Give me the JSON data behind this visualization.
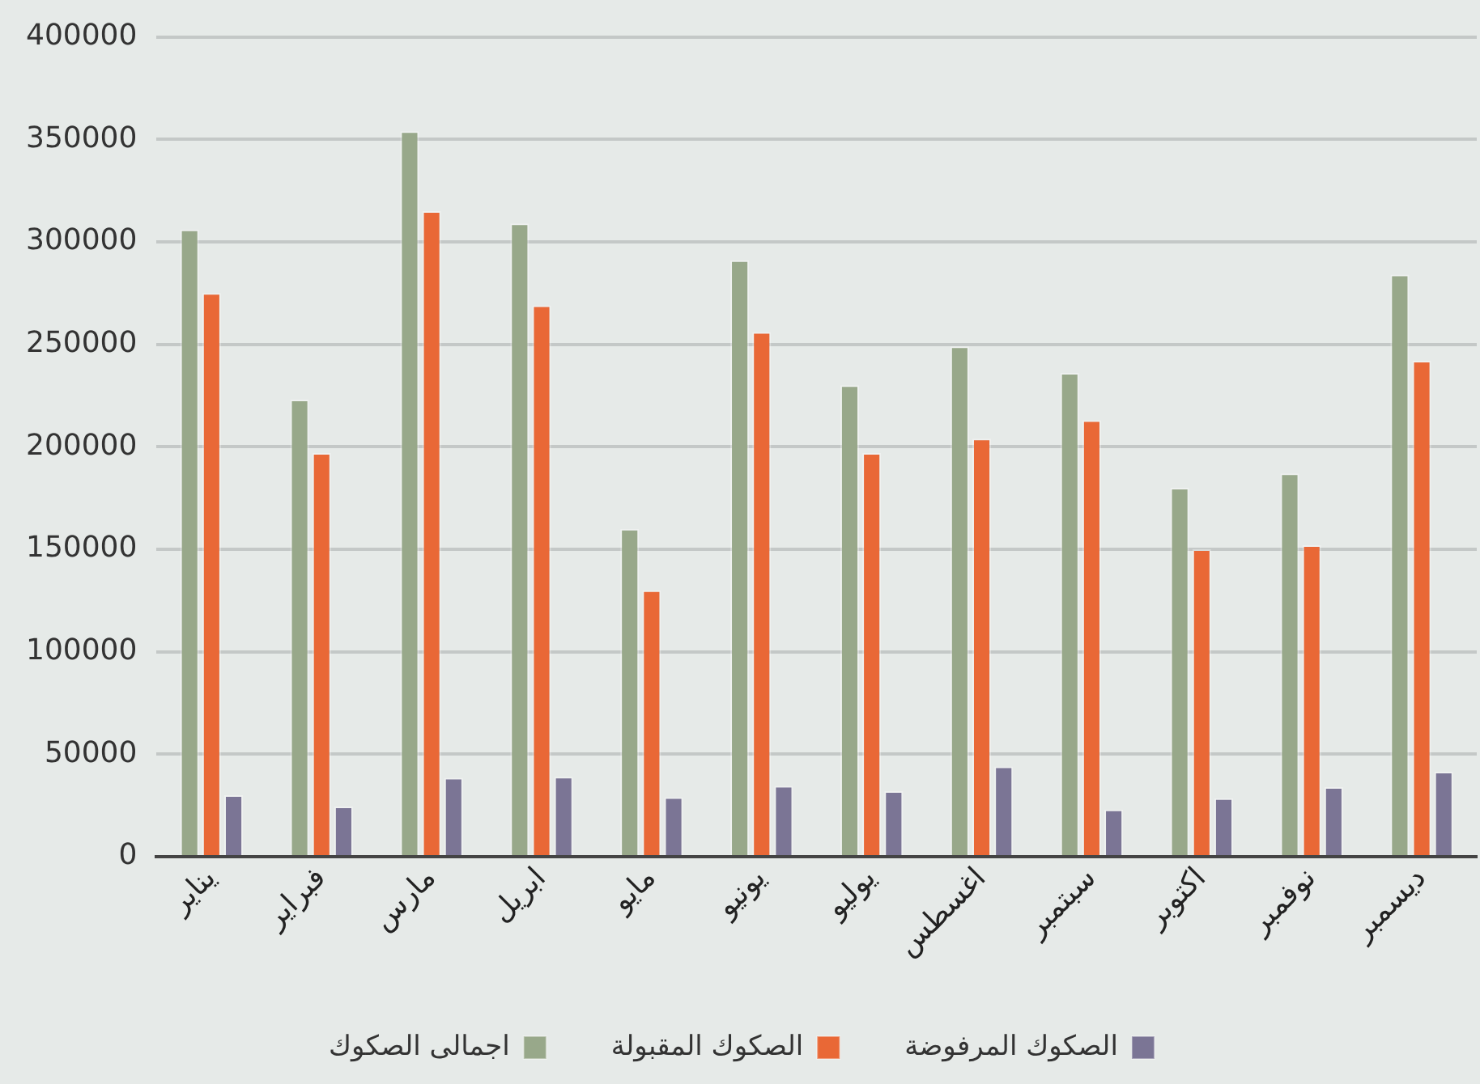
{
  "chart_data": {
    "type": "bar",
    "categories": [
      "يناير",
      "فبراير",
      "مارس",
      "ابريل",
      "مايو",
      "يونيو",
      "يوليو",
      "اغسطس",
      "سبتمبر",
      "اكتوبر",
      "نوفمبر",
      "ديسمبر"
    ],
    "series": [
      {
        "name": "اجمالى الصكوك",
        "color": "#98a88a",
        "values": [
          306000,
          223000,
          354000,
          309000,
          160000,
          291000,
          230000,
          249000,
          236000,
          180000,
          187000,
          284000
        ]
      },
      {
        "name": "الصكوك المقبولة",
        "color": "#e96836",
        "values": [
          275000,
          197000,
          315000,
          269000,
          130000,
          256000,
          197000,
          204000,
          213000,
          150000,
          152000,
          242000
        ]
      },
      {
        "name": "الصكوك المرفوضة",
        "color": "#7b7595",
        "values": [
          30000,
          24500,
          38500,
          39000,
          29000,
          34500,
          32000,
          44000,
          23000,
          28500,
          34000,
          41500
        ]
      }
    ],
    "ylim": [
      0,
      400000
    ],
    "yticks": [
      0,
      50000,
      100000,
      150000,
      200000,
      250000,
      300000,
      350000,
      400000
    ],
    "grid": "y",
    "legend": "bottom"
  }
}
